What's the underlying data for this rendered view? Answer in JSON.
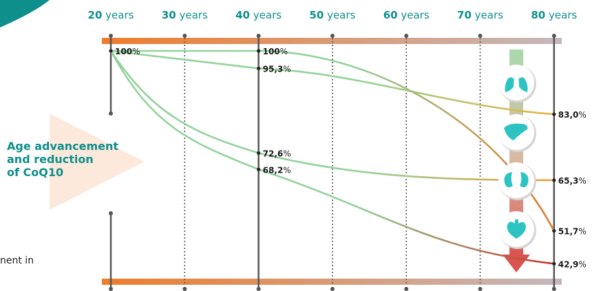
{
  "side_title": "Age advancement\nand reduction\nof CoQ10",
  "side_text": "nent in",
  "organ_icons": [
    "lungs-icon",
    "liver-icon",
    "kidneys-icon",
    "heart-icon"
  ],
  "colors": {
    "teal": "#0e8f8c",
    "bar_start": "#ee7d2d",
    "bar_end": "#c4b8bd",
    "axis": "#555555",
    "curve_start": "#93d29b",
    "arrow_green": "#a9d9ac",
    "arrow_red": "#d9534f",
    "triangle": "#fde9dc"
  },
  "chart_data": {
    "type": "line",
    "title": "",
    "xlabel": "",
    "ylabel": "",
    "x_ticks": [
      {
        "num": "20",
        "unit": " years",
        "value": 20
      },
      {
        "num": "30",
        "unit": " years",
        "value": 30
      },
      {
        "num": "40",
        "unit": " years",
        "value": 40
      },
      {
        "num": "50",
        "unit": " years",
        "value": 50
      },
      {
        "num": "60",
        "unit": " years",
        "value": 60
      },
      {
        "num": "70",
        "unit": " years",
        "value": 70
      },
      {
        "num": "80",
        "unit": " years",
        "value": 80
      }
    ],
    "xlim": [
      20,
      80
    ],
    "ylim": [
      40,
      100
    ],
    "series": [
      {
        "organ": "lungs",
        "color": "#e8b340",
        "points": [
          [
            20,
            100
          ],
          [
            40,
            95.3
          ],
          [
            80,
            83.0
          ]
        ]
      },
      {
        "organ": "liver",
        "color": "#e07a30",
        "points": [
          [
            20,
            100
          ],
          [
            40,
            100
          ],
          [
            80,
            51.7
          ]
        ]
      },
      {
        "organ": "kidneys",
        "color": "#e6a23a",
        "points": [
          [
            20,
            100
          ],
          [
            40,
            72.6
          ],
          [
            80,
            65.3
          ]
        ]
      },
      {
        "organ": "heart",
        "color": "#c8382e",
        "points": [
          [
            20,
            100
          ],
          [
            40,
            68.2
          ],
          [
            80,
            42.9
          ]
        ]
      }
    ],
    "labels": [
      {
        "x": 20,
        "y": 100,
        "num": "100",
        "pct": "%"
      },
      {
        "x": 40,
        "y": 100,
        "num": "100",
        "pct": "%"
      },
      {
        "x": 40,
        "y": 95.3,
        "num": "95,3",
        "pct": "%"
      },
      {
        "x": 40,
        "y": 72.6,
        "num": "72,6",
        "pct": "%"
      },
      {
        "x": 40,
        "y": 68.2,
        "num": "68,2",
        "pct": "%"
      },
      {
        "x": 80,
        "y": 83.0,
        "num": "83,0",
        "pct": "%"
      },
      {
        "x": 80,
        "y": 65.3,
        "num": "65,3",
        "pct": "%"
      },
      {
        "x": 80,
        "y": 51.7,
        "num": "51,7",
        "pct": "%"
      },
      {
        "x": 80,
        "y": 42.9,
        "num": "42,9",
        "pct": "%"
      }
    ]
  }
}
